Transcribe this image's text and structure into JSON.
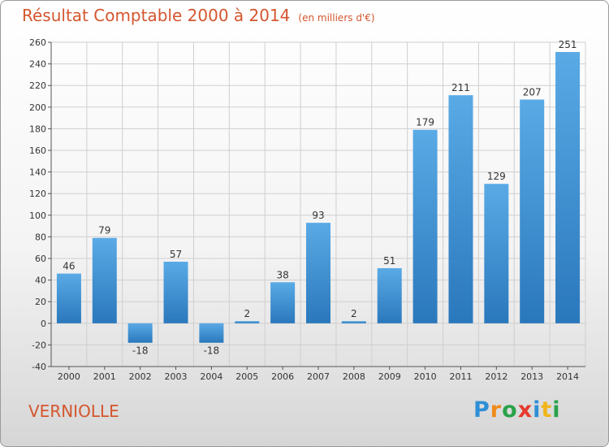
{
  "header": {
    "title": "Résultat Comptable 2000 à 2014",
    "subtitle": "(en milliers d'€)"
  },
  "footer": {
    "commune": "VERNIOLLE",
    "logo_letters": [
      "P",
      "r",
      "o",
      "x",
      "i",
      "t",
      "i"
    ],
    "logo_colors": [
      "#2e8fd6",
      "#f08a1c",
      "#2aa24a",
      "#e63a2e",
      "#2e8fd6",
      "#f0b51c",
      "#2aa24a"
    ]
  },
  "chart_data": {
    "type": "bar",
    "categories": [
      "2000",
      "2001",
      "2002",
      "2003",
      "2004",
      "2005",
      "2006",
      "2007",
      "2008",
      "2009",
      "2010",
      "2011",
      "2012",
      "2013",
      "2014"
    ],
    "values": [
      46,
      79,
      -18,
      57,
      -18,
      2,
      38,
      93,
      2,
      51,
      179,
      211,
      129,
      207,
      251
    ],
    "data_labels": [
      "46",
      "79",
      "-18",
      "57",
      "-18",
      "2",
      "38",
      "93",
      "2",
      "51",
      "179",
      "211",
      "129",
      "207",
      "251"
    ],
    "ylim": [
      -40,
      260
    ],
    "yticks": [
      -40,
      -20,
      0,
      20,
      40,
      60,
      80,
      100,
      120,
      140,
      160,
      180,
      200,
      220,
      240,
      260
    ],
    "ytick_labels": [
      "-40",
      "-20",
      "0",
      "20",
      "40",
      "60",
      "80",
      "100",
      "120",
      "140",
      "160",
      "180",
      "200",
      "220",
      "240",
      "260"
    ],
    "grid": true,
    "colors": {
      "bar_light": "#5aaae6",
      "bar_dark": "#2a78bc",
      "grid": "#cfcfcf",
      "axis": "#555555"
    }
  }
}
